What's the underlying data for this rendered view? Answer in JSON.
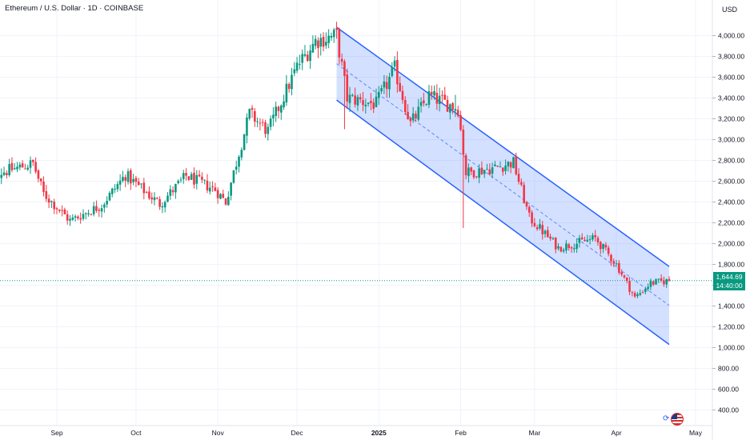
{
  "header": {
    "title": "Ethereum / U.S. Dollar · 1D · COINBASE",
    "currency": "USD"
  },
  "price_tag": {
    "price": "1,644.69",
    "countdown": "14:40:00"
  },
  "colors": {
    "up": "#089981",
    "down": "#f23645",
    "channel_line": "#2962ff",
    "channel_fill": "rgba(41,98,255,0.20)",
    "grid": "#f0f3fa"
  },
  "icons": {
    "flag": "us-flag-icon",
    "sync": "sync-icon"
  },
  "chart_data": {
    "type": "candlestick",
    "title": "Ethereum / U.S. Dollar · 1D · COINBASE",
    "y_axis": {
      "ticks": [
        400,
        600,
        800,
        1000,
        1200,
        1400,
        1600,
        1800,
        2000,
        2200,
        2400,
        2600,
        2800,
        3000,
        3200,
        3400,
        3600,
        3800,
        4000
      ],
      "tick_labels": [
        "400.00",
        "600.00",
        "800.00",
        "1,000.00",
        "1,200.00",
        "1,400.00",
        "1,600.00",
        "1,800.00",
        "2,000.00",
        "2,200.00",
        "2,400.00",
        "2,600.00",
        "2,800.00",
        "3,000.00",
        "3,200.00",
        "3,400.00",
        "3,600.00",
        "3,800.00",
        "4,000.00"
      ],
      "range": [
        250,
        4330
      ]
    },
    "x_axis": {
      "labels": [
        {
          "label": "Sep",
          "date": "2024-09-01",
          "bold": false
        },
        {
          "label": "Oct",
          "date": "2024-10-01",
          "bold": false
        },
        {
          "label": "Nov",
          "date": "2024-11-01",
          "bold": false
        },
        {
          "label": "Dec",
          "date": "2024-12-01",
          "bold": false
        },
        {
          "label": "2025",
          "date": "2025-01-01",
          "bold": true
        },
        {
          "label": "Feb",
          "date": "2025-02-01",
          "bold": false
        },
        {
          "label": "Mar",
          "date": "2025-03-01",
          "bold": false
        },
        {
          "label": "Apr",
          "date": "2025-04-01",
          "bold": false
        },
        {
          "label": "May",
          "date": "2025-05-01",
          "bold": false
        }
      ]
    },
    "price_path": [
      [
        "2024-08-05",
        2650
      ],
      [
        "2024-08-13",
        2700
      ],
      [
        "2024-08-23",
        2770
      ],
      [
        "2024-08-27",
        2480
      ],
      [
        "2024-09-06",
        2220
      ],
      [
        "2024-09-18",
        2370
      ],
      [
        "2024-09-27",
        2660
      ],
      [
        "2024-10-10",
        2380
      ],
      [
        "2024-10-20",
        2650
      ],
      [
        "2024-10-31",
        2520
      ],
      [
        "2024-11-04",
        2400
      ],
      [
        "2024-11-13",
        3250
      ],
      [
        "2024-11-20",
        3080
      ],
      [
        "2024-12-01",
        3700
      ],
      [
        "2024-12-08",
        3950
      ],
      [
        "2024-12-16",
        4000
      ],
      [
        "2024-12-20",
        3400
      ],
      [
        "2024-12-31",
        3340
      ],
      [
        "2025-01-07",
        3680
      ],
      [
        "2025-01-13",
        3150
      ],
      [
        "2025-01-20",
        3420
      ],
      [
        "2025-01-31",
        3300
      ],
      [
        "2025-02-03",
        2680
      ],
      [
        "2025-02-14",
        2730
      ],
      [
        "2025-02-21",
        2780
      ],
      [
        "2025-02-27",
        2250
      ],
      [
        "2025-03-10",
        1960
      ],
      [
        "2025-03-24",
        2050
      ],
      [
        "2025-04-01",
        1800
      ],
      [
        "2025-04-08",
        1480
      ],
      [
        "2025-04-14",
        1620
      ],
      [
        "2025-04-21",
        1645
      ]
    ],
    "wick_spikes": [
      {
        "date": "2024-12-19",
        "low": 3100
      },
      {
        "date": "2025-02-02",
        "low": 2150
      },
      {
        "date": "2025-01-30",
        "high": 3430
      }
    ],
    "last_price": 1644.69,
    "channel": {
      "upper": [
        [
          "2024-12-16",
          4080
        ],
        [
          "2025-04-21",
          1780
        ]
      ],
      "lower": [
        [
          "2024-12-16",
          3380
        ],
        [
          "2025-04-21",
          1030
        ]
      ],
      "median": [
        [
          "2024-12-16",
          3730
        ],
        [
          "2025-04-21",
          1405
        ]
      ]
    }
  }
}
